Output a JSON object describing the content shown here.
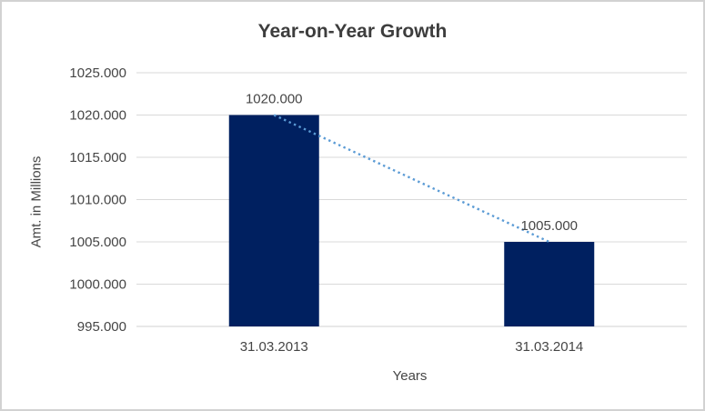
{
  "chart_data": {
    "type": "bar",
    "title": "Year-on-Year Growth",
    "xlabel": "Years",
    "ylabel": "Amt. in Millions",
    "categories": [
      "31.03.2013",
      "31.03.2014"
    ],
    "values": [
      1020,
      1005
    ],
    "value_labels": [
      "1020.000",
      "1005.000"
    ],
    "y_ticks": [
      995,
      1000,
      1005,
      1010,
      1015,
      1020,
      1025
    ],
    "y_tick_labels": [
      "995.000",
      "1000.000",
      "1005.000",
      "1010.000",
      "1015.000",
      "1020.000",
      "1025.000"
    ],
    "ylim": [
      995,
      1025
    ],
    "grid": true,
    "legend": "none",
    "bar_color": "#002060",
    "gridline_color": "#d9d9d9",
    "axis_line_color": "#d0d0d0",
    "text_color": "#454545",
    "title_color": "#3d3d3d",
    "trendline": {
      "type": "linear",
      "style": "dotted",
      "color": "#5b9bd5",
      "from": [
        0,
        1020
      ],
      "to": [
        1,
        1005
      ]
    }
  }
}
